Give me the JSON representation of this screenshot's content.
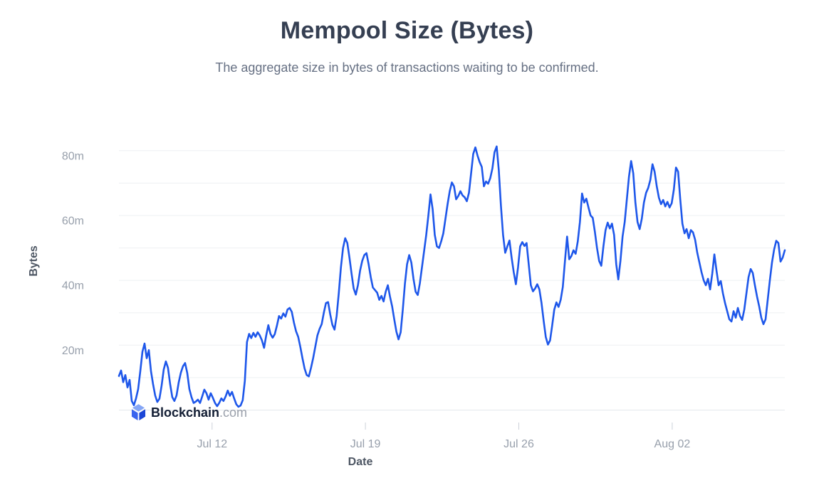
{
  "header": {
    "title": "Mempool Size (Bytes)",
    "subtitle": "The aggregate size in bytes of transactions waiting to be confirmed."
  },
  "watermark": {
    "brand": "Blockchain",
    "suffix": ".com",
    "logo_icon": "blockchain-cube-logo"
  },
  "colors": {
    "line": "#1e57ea",
    "grid": "#eef0f3",
    "axis_line": "#e4e8ec",
    "tick": "#ccd1d9",
    "tick_label": "#979fab",
    "axis_title": "#4d5663",
    "title": "#353f52",
    "subtitle": "#677184",
    "logo_top": "#85a6f6",
    "logo_left": "#3a64ee",
    "logo_right": "#1b46d7",
    "background": "#ffffff"
  },
  "chart_data": {
    "type": "line",
    "title": "Mempool Size (Bytes)",
    "xlabel": "Date",
    "ylabel": "Bytes",
    "unit": "millions of bytes",
    "grid": "on",
    "legend": "off",
    "x_axis": {
      "day_start": 7.75,
      "day_step": 0.0974,
      "tick_days": [
        12,
        19,
        26,
        33
      ],
      "tick_labels": [
        "Jul 12",
        "Jul 19",
        "Jul 26",
        "Aug 02"
      ]
    },
    "y_axis": {
      "min": 0,
      "max": 84.7,
      "gridline_step": 10,
      "ticks": [
        20,
        40,
        60,
        80
      ],
      "tick_labels": [
        "20m",
        "40m",
        "60m",
        "80m"
      ]
    },
    "series": [
      {
        "name": "Mempool Size",
        "color": "#1e57ea",
        "values": [
          10.5,
          12.2,
          8.6,
          10.8,
          7,
          9.3,
          2.8,
          1.5,
          3.6,
          6.5,
          12,
          18,
          20.5,
          16,
          18.5,
          12,
          8,
          4.5,
          2.5,
          3.5,
          7.5,
          12.5,
          15,
          13,
          8,
          4,
          2.8,
          4.5,
          8.5,
          11.5,
          13.5,
          14.5,
          11.5,
          6.5,
          4,
          2.2,
          2.6,
          3.2,
          2.2,
          4.2,
          6.3,
          5.2,
          3.2,
          5.2,
          3.8,
          2.2,
          1.2,
          2.2,
          3.6,
          2.8,
          4.2,
          6,
          4.4,
          5.6,
          3.6,
          1.8,
          1,
          1.4,
          3,
          9,
          21,
          23.5,
          22.2,
          23.8,
          22.6,
          24,
          23,
          21.5,
          19.2,
          23,
          26.2,
          23.5,
          22.3,
          23.4,
          26,
          29,
          28.2,
          29.8,
          28.8,
          31,
          31.5,
          30.3,
          27,
          24.3,
          22.6,
          19.5,
          16,
          12.8,
          10.8,
          10.4,
          13,
          16,
          19.5,
          23,
          25,
          26.5,
          30,
          33,
          33.3,
          29.5,
          26.3,
          24.8,
          29,
          36,
          44,
          50,
          53,
          51.5,
          47,
          42,
          37.5,
          35.6,
          38.5,
          43,
          46,
          47.8,
          48.4,
          45,
          41,
          37.8,
          37,
          36.2,
          34,
          35.2,
          33.5,
          36.5,
          38.5,
          35,
          32,
          28,
          24.2,
          21.8,
          24,
          31,
          39,
          45,
          47.8,
          45.5,
          40.5,
          36.5,
          35.5,
          39,
          44,
          49,
          54,
          60,
          66.5,
          62,
          54,
          50.5,
          50,
          52,
          54.5,
          59,
          63.5,
          67.5,
          70.2,
          69,
          65,
          66,
          67.5,
          66.2,
          65.6,
          64.4,
          67,
          73,
          79,
          81,
          78.5,
          76.5,
          75,
          69,
          70.5,
          69.8,
          71.5,
          74.5,
          79.5,
          81.3,
          74,
          63,
          54,
          48.5,
          50.5,
          52.3,
          47,
          42.5,
          38.8,
          44,
          50.5,
          51.8,
          50.6,
          51.5,
          45,
          38.5,
          36.6,
          37.5,
          38.8,
          37.2,
          33,
          27.5,
          22.5,
          20.2,
          21.5,
          26,
          31,
          33.2,
          31.8,
          34,
          38,
          46,
          53.5,
          46.5,
          47.5,
          49.3,
          48.2,
          52,
          58,
          66.8,
          64,
          65.2,
          62.5,
          60,
          59.3,
          55,
          50,
          46,
          44.5,
          50.5,
          55.5,
          57.8,
          56,
          57.5,
          54,
          45,
          40.3,
          46,
          53.5,
          58,
          65,
          72,
          76.8,
          73,
          64,
          58,
          55.8,
          59,
          64,
          67,
          68.5,
          71,
          75.8,
          73.5,
          69,
          65.5,
          63.5,
          64.8,
          62.8,
          64.2,
          62.5,
          63.8,
          68,
          74.8,
          73.5,
          65,
          57.5,
          54.5,
          55.8,
          53,
          55.5,
          54.8,
          52.5,
          48.5,
          45.5,
          42.5,
          40,
          38.5,
          40.5,
          37.2,
          42,
          48,
          43,
          38.5,
          39.8,
          36,
          33,
          30.5,
          28,
          27.3,
          30.5,
          28.5,
          31.5,
          29,
          27.8,
          31,
          36,
          41,
          43.5,
          42.3,
          38.5,
          35,
          32,
          28.5,
          26.5,
          28,
          34,
          40,
          45.5,
          49.5,
          52.2,
          51.5,
          45.8,
          47,
          49.3
        ]
      }
    ]
  }
}
